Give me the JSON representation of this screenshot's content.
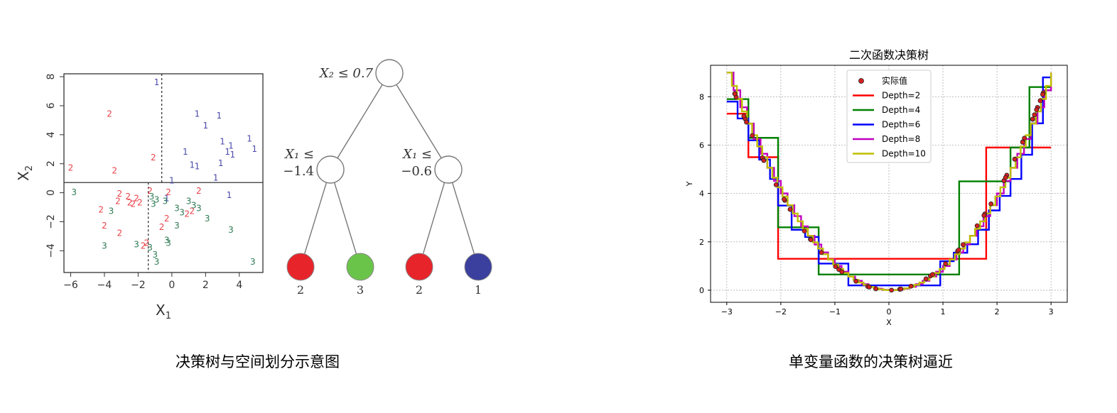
{
  "captions": {
    "left": "决策树与空间划分示意图",
    "right": "单变量函数的决策树逼近"
  },
  "chart_data": [
    {
      "type": "scatter",
      "title": "",
      "xlabel": "X1",
      "ylabel": "X2",
      "xlim": [
        -6.4,
        5.4
      ],
      "ylim": [
        -5.5,
        8.2
      ],
      "xticks": [
        -6,
        -4,
        -2,
        0,
        2,
        4
      ],
      "yticks": [
        -4,
        -2,
        0,
        2,
        4,
        6,
        8
      ],
      "tick_labels_x": [
        "−6",
        "−4",
        "−2",
        "0",
        "2",
        "4"
      ],
      "tick_labels_y": [
        "−4",
        "−2",
        "0",
        "2",
        "4",
        "6",
        "8"
      ],
      "split_lines": [
        {
          "orientation": "horizontal",
          "at": 0.7,
          "style": "solid"
        },
        {
          "orientation": "vertical",
          "at": -0.6,
          "from": 0.7,
          "to": 8.2,
          "style": "dotted"
        },
        {
          "orientation": "vertical",
          "at": -1.4,
          "from": -5.5,
          "to": 0.7,
          "style": "dotted"
        }
      ],
      "class_colors": {
        "1": "#4a4aaa",
        "2": "#e8434a",
        "3": "#2e7b54"
      },
      "points": [
        {
          "c": "1",
          "x": -0.9,
          "y": 7.6
        },
        {
          "c": "1",
          "x": 1.5,
          "y": 5.4
        },
        {
          "c": "1",
          "x": 2.8,
          "y": 5.3
        },
        {
          "c": "1",
          "x": 2.0,
          "y": 4.6
        },
        {
          "c": "1",
          "x": 4.6,
          "y": 3.7
        },
        {
          "c": "1",
          "x": 3.0,
          "y": 3.5
        },
        {
          "c": "1",
          "x": 3.5,
          "y": 3.2
        },
        {
          "c": "1",
          "x": 4.9,
          "y": 3.0
        },
        {
          "c": "1",
          "x": 0.8,
          "y": 2.8
        },
        {
          "c": "1",
          "x": 3.3,
          "y": 2.8
        },
        {
          "c": "1",
          "x": 3.6,
          "y": 2.6
        },
        {
          "c": "1",
          "x": 2.9,
          "y": 2.0
        },
        {
          "c": "1",
          "x": 1.2,
          "y": 1.9
        },
        {
          "c": "1",
          "x": 1.5,
          "y": 1.8
        },
        {
          "c": "1",
          "x": 2.6,
          "y": 1.0
        },
        {
          "c": "1",
          "x": 0.0,
          "y": 0.8
        },
        {
          "c": "1",
          "x": 3.4,
          "y": -0.2
        },
        {
          "c": "1",
          "x": -0.3,
          "y": -0.4
        },
        {
          "c": "2",
          "x": -3.7,
          "y": 5.4
        },
        {
          "c": "2",
          "x": -1.1,
          "y": 2.4
        },
        {
          "c": "2",
          "x": -6.0,
          "y": 1.7
        },
        {
          "c": "2",
          "x": -3.4,
          "y": 1.5
        },
        {
          "c": "2",
          "x": -1.3,
          "y": 0.1
        },
        {
          "c": "2",
          "x": -0.2,
          "y": 0.0
        },
        {
          "c": "2",
          "x": 1.6,
          "y": 0.1
        },
        {
          "c": "2",
          "x": -3.1,
          "y": -0.1
        },
        {
          "c": "2",
          "x": -2.6,
          "y": -0.3
        },
        {
          "c": "2",
          "x": -2.1,
          "y": -0.4
        },
        {
          "c": "2",
          "x": -3.2,
          "y": -0.6
        },
        {
          "c": "2",
          "x": -2.5,
          "y": -0.7
        },
        {
          "c": "2",
          "x": -2.3,
          "y": -0.8
        },
        {
          "c": "2",
          "x": -1.9,
          "y": -0.7
        },
        {
          "c": "2",
          "x": -4.2,
          "y": -1.2
        },
        {
          "c": "2",
          "x": 1.2,
          "y": -1.3
        },
        {
          "c": "2",
          "x": 0.9,
          "y": -1.5
        },
        {
          "c": "2",
          "x": -0.3,
          "y": -1.8
        },
        {
          "c": "2",
          "x": -4.0,
          "y": -2.3
        },
        {
          "c": "2",
          "x": -0.6,
          "y": -2.4
        },
        {
          "c": "2",
          "x": -3.1,
          "y": -2.8
        },
        {
          "c": "2",
          "x": -1.5,
          "y": -3.5
        },
        {
          "c": "2",
          "x": -1.7,
          "y": -3.7
        },
        {
          "c": "3",
          "x": -5.8,
          "y": 0.0
        },
        {
          "c": "3",
          "x": -1.2,
          "y": -0.3
        },
        {
          "c": "3",
          "x": -0.9,
          "y": -0.5
        },
        {
          "c": "3",
          "x": -0.4,
          "y": -0.6
        },
        {
          "c": "3",
          "x": -1.1,
          "y": -0.8
        },
        {
          "c": "3",
          "x": 1.0,
          "y": -0.6
        },
        {
          "c": "3",
          "x": 1.3,
          "y": -0.9
        },
        {
          "c": "3",
          "x": 1.6,
          "y": -1.1
        },
        {
          "c": "3",
          "x": 0.3,
          "y": -1.1
        },
        {
          "c": "3",
          "x": 0.6,
          "y": -1.4
        },
        {
          "c": "3",
          "x": 2.1,
          "y": -1.8
        },
        {
          "c": "3",
          "x": -3.6,
          "y": -1.3
        },
        {
          "c": "3",
          "x": 0.3,
          "y": -2.3
        },
        {
          "c": "3",
          "x": 3.5,
          "y": -2.6
        },
        {
          "c": "3",
          "x": -0.3,
          "y": -3.3
        },
        {
          "c": "3",
          "x": -0.2,
          "y": -3.5
        },
        {
          "c": "3",
          "x": -4.0,
          "y": -3.7
        },
        {
          "c": "3",
          "x": -2.1,
          "y": -3.6
        },
        {
          "c": "3",
          "x": -1.3,
          "y": -3.8
        },
        {
          "c": "3",
          "x": -1.0,
          "y": -4.3
        },
        {
          "c": "3",
          "x": -0.9,
          "y": -4.8
        },
        {
          "c": "3",
          "x": 4.8,
          "y": -4.8
        }
      ]
    },
    {
      "type": "diagram",
      "title": "",
      "nodes": [
        {
          "id": "root",
          "label": "X₂ ≤ 0.7"
        },
        {
          "id": "left",
          "label_lines": [
            "X₁ ≤",
            "−1.4"
          ]
        },
        {
          "id": "right",
          "label_lines": [
            "X₁ ≤",
            "−0.6"
          ]
        },
        {
          "id": "ll",
          "leaf": "2",
          "color": "#e8242b"
        },
        {
          "id": "lr",
          "leaf": "3",
          "color": "#6bc44a"
        },
        {
          "id": "rl",
          "leaf": "2",
          "color": "#e8242b"
        },
        {
          "id": "rr",
          "leaf": "1",
          "color": "#3b3f9e"
        }
      ],
      "edges": [
        [
          "root",
          "left"
        ],
        [
          "root",
          "right"
        ],
        [
          "left",
          "ll"
        ],
        [
          "left",
          "lr"
        ],
        [
          "right",
          "rl"
        ],
        [
          "right",
          "rr"
        ]
      ]
    },
    {
      "type": "line",
      "title": "二次函数决策树",
      "xlabel": "X",
      "ylabel": "Y",
      "xlim": [
        -3.3,
        3.3
      ],
      "ylim": [
        -0.5,
        9.3
      ],
      "xticks": [
        -3,
        -2,
        -1,
        0,
        1,
        2,
        3
      ],
      "yticks": [
        0,
        2,
        4,
        6,
        8
      ],
      "grid": true,
      "legend_position": "top-center",
      "scatter": {
        "name": "实际值",
        "function": "y = x^2",
        "x_range": [
          -3,
          3
        ],
        "color": "#d42020"
      },
      "series": [
        {
          "name": "Depth=2",
          "color": "#ff0000",
          "steps": [
            [
              -3.0,
              7.3
            ],
            [
              -2.6,
              5.5
            ],
            [
              -2.05,
              1.3
            ],
            [
              1.8,
              5.9
            ],
            [
              3.0,
              5.9
            ]
          ]
        },
        {
          "name": "Depth=4",
          "color": "#008000",
          "steps": [
            [
              -3.0,
              7.9
            ],
            [
              -2.6,
              6.3
            ],
            [
              -2.05,
              2.6
            ],
            [
              -1.3,
              0.65
            ],
            [
              1.3,
              4.5
            ],
            [
              1.8,
              4.5
            ],
            [
              2.25,
              5.9
            ],
            [
              2.6,
              8.4
            ],
            [
              3.0,
              8.4
            ]
          ]
        },
        {
          "name": "Depth=6",
          "color": "#0000ff",
          "steps": [
            [
              -3.0,
              7.8
            ],
            [
              -2.8,
              7.1
            ],
            [
              -2.6,
              6.2
            ],
            [
              -2.4,
              5.4
            ],
            [
              -2.2,
              4.6
            ],
            [
              -2.05,
              3.5
            ],
            [
              -1.8,
              2.5
            ],
            [
              -1.55,
              2.2
            ],
            [
              -1.3,
              1.1
            ],
            [
              -0.75,
              0.2
            ],
            [
              0.95,
              1.2
            ],
            [
              1.2,
              1.55
            ],
            [
              1.45,
              1.9
            ],
            [
              1.65,
              2.5
            ],
            [
              1.85,
              3.3
            ],
            [
              2.05,
              3.9
            ],
            [
              2.25,
              4.6
            ],
            [
              2.45,
              5.6
            ],
            [
              2.65,
              6.9
            ],
            [
              2.85,
              8.8
            ],
            [
              3.0,
              8.8
            ]
          ]
        },
        {
          "name": "Depth=8",
          "color": "#bf00bf",
          "function": "piecewise_fine"
        },
        {
          "name": "Depth=10",
          "color": "#bfbf00",
          "function": "piecewise_fine"
        }
      ]
    }
  ]
}
